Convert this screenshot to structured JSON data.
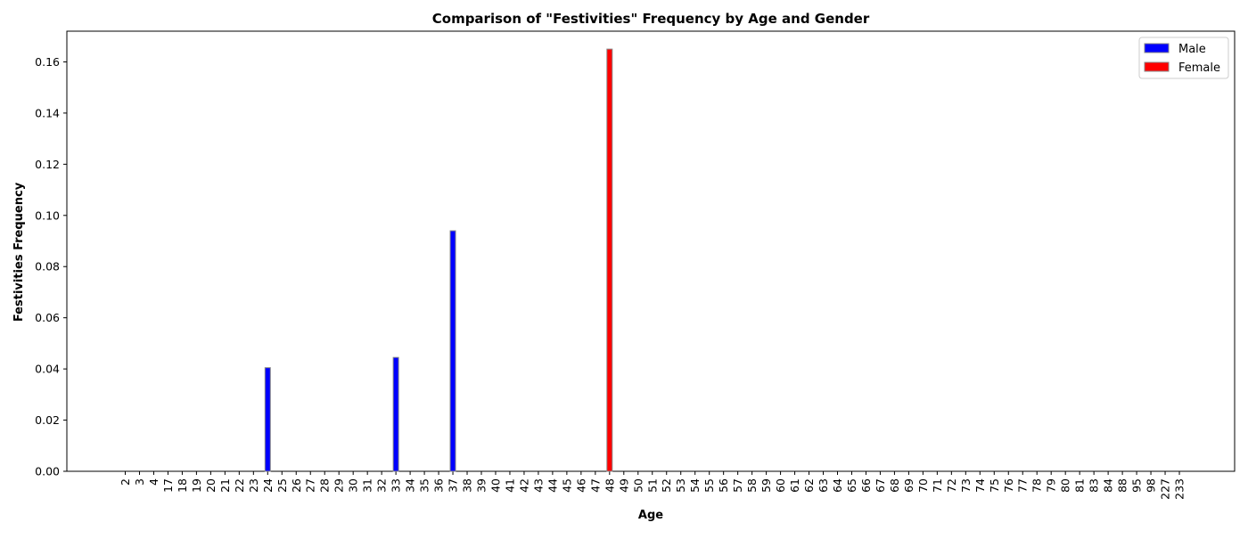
{
  "chart_data": {
    "type": "bar",
    "title": "Comparison of \"Festivities\" Frequency by Age and Gender",
    "xlabel": "Age",
    "ylabel": "Festivities Frequency",
    "ylim": [
      0,
      0.172
    ],
    "yticks": [
      "0.00",
      "0.02",
      "0.04",
      "0.06",
      "0.08",
      "0.10",
      "0.12",
      "0.14",
      "0.16"
    ],
    "categories": [
      "2",
      "3",
      "4",
      "17",
      "18",
      "19",
      "20",
      "21",
      "22",
      "23",
      "24",
      "25",
      "26",
      "27",
      "28",
      "29",
      "30",
      "31",
      "32",
      "33",
      "34",
      "35",
      "36",
      "37",
      "38",
      "39",
      "40",
      "41",
      "42",
      "43",
      "44",
      "45",
      "46",
      "47",
      "48",
      "49",
      "50",
      "51",
      "52",
      "53",
      "54",
      "55",
      "56",
      "57",
      "58",
      "59",
      "60",
      "61",
      "62",
      "63",
      "64",
      "65",
      "66",
      "67",
      "68",
      "69",
      "70",
      "71",
      "72",
      "73",
      "74",
      "75",
      "76",
      "77",
      "78",
      "79",
      "80",
      "81",
      "83",
      "84",
      "88",
      "95",
      "98",
      "227",
      "233"
    ],
    "series": [
      {
        "name": "Male",
        "color": "#0000ff",
        "values": [
          0,
          0,
          0,
          0,
          0,
          0,
          0,
          0,
          0,
          0,
          0.0405,
          0,
          0,
          0,
          0,
          0,
          0,
          0,
          0,
          0.0445,
          0,
          0,
          0,
          0.094,
          0,
          0,
          0,
          0,
          0,
          0,
          0,
          0,
          0,
          0,
          0,
          0,
          0,
          0,
          0,
          0,
          0,
          0,
          0,
          0,
          0,
          0,
          0,
          0,
          0,
          0,
          0,
          0,
          0,
          0,
          0,
          0,
          0,
          0,
          0,
          0,
          0,
          0,
          0,
          0,
          0,
          0,
          0,
          0,
          0,
          0,
          0,
          0,
          0,
          0,
          0
        ]
      },
      {
        "name": "Female",
        "color": "#ff0000",
        "values": [
          0,
          0,
          0,
          0,
          0,
          0,
          0,
          0,
          0,
          0,
          0,
          0,
          0,
          0,
          0,
          0,
          0,
          0,
          0,
          0,
          0,
          0,
          0,
          0,
          0,
          0,
          0,
          0,
          0,
          0,
          0,
          0,
          0,
          0,
          0.165,
          0,
          0,
          0,
          0,
          0,
          0,
          0,
          0,
          0,
          0,
          0,
          0,
          0,
          0,
          0,
          0,
          0,
          0,
          0,
          0,
          0,
          0,
          0,
          0,
          0,
          0,
          0,
          0,
          0,
          0,
          0,
          0,
          0,
          0,
          0,
          0,
          0,
          0,
          0,
          0
        ]
      }
    ],
    "grid": false,
    "legend_position": "top-right"
  }
}
